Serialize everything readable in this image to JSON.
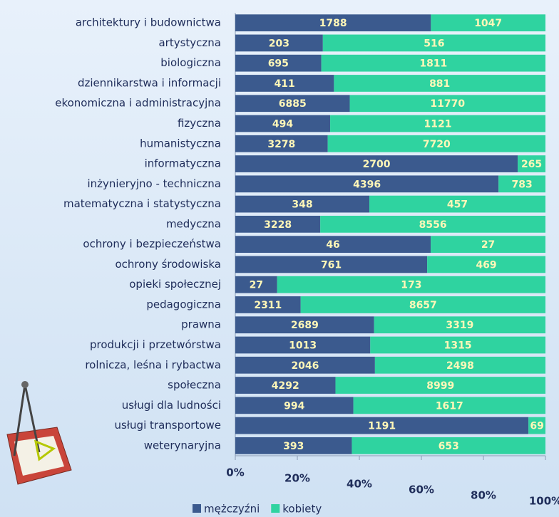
{
  "chart_data": {
    "type": "bar",
    "stacked": "percent",
    "categories": [
      "architektury i budownictwa",
      "artystyczna",
      "biologiczna",
      "dziennikarstwa i informacji",
      "ekonomiczna i administracyjna",
      "fizyczna",
      "humanistyczna",
      "informatyczna",
      "inżynieryjno - techniczna",
      "matematyczna i statystyczna",
      "medyczna",
      "ochrony i bezpieczeństwa",
      "ochrony środowiska",
      "opieki społecznej",
      "pedagogiczna",
      "prawna",
      "produkcji i przetwórstwa",
      "rolnicza, leśna i rybactwa",
      "społeczna",
      "usługi dla ludności",
      "usługi transportowe",
      "weterynaryjna"
    ],
    "series": [
      {
        "name": "mężczyźni",
        "color": "#3b5a8e",
        "values": [
          1788,
          203,
          695,
          411,
          6885,
          494,
          3278,
          2700,
          4396,
          348,
          3228,
          46,
          761,
          27,
          2311,
          2689,
          1013,
          2046,
          4292,
          994,
          1191,
          393
        ]
      },
      {
        "name": "kobiety",
        "color": "#2fd3a0",
        "values": [
          1047,
          516,
          1811,
          881,
          11770,
          1121,
          7720,
          265,
          783,
          457,
          8556,
          27,
          469,
          173,
          8657,
          3319,
          1315,
          2498,
          8999,
          1617,
          69,
          653
        ]
      }
    ],
    "xlim": [
      0,
      100
    ],
    "xticks": [
      {
        "value": 0,
        "label": "0%"
      },
      {
        "value": 20,
        "label": "20%"
      },
      {
        "value": 40,
        "label": "40%"
      },
      {
        "value": 60,
        "label": "60%"
      },
      {
        "value": 80,
        "label": "80%"
      },
      {
        "value": 100,
        "label": "100%"
      }
    ],
    "legend": "bottom"
  }
}
